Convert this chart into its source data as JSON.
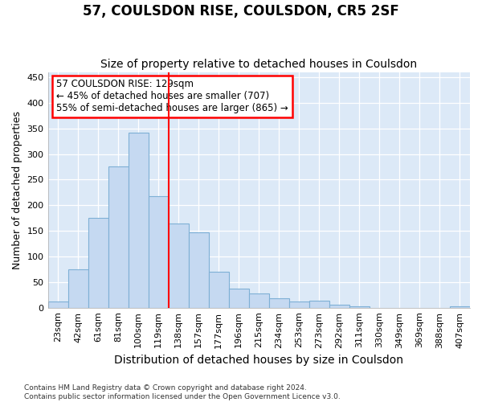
{
  "title": "57, COULSDON RISE, COULSDON, CR5 2SF",
  "subtitle": "Size of property relative to detached houses in Coulsdon",
  "xlabel": "Distribution of detached houses by size in Coulsdon",
  "ylabel": "Number of detached properties",
  "categories": [
    "23sqm",
    "42sqm",
    "61sqm",
    "81sqm",
    "100sqm",
    "119sqm",
    "138sqm",
    "157sqm",
    "177sqm",
    "196sqm",
    "215sqm",
    "234sqm",
    "253sqm",
    "273sqm",
    "292sqm",
    "311sqm",
    "330sqm",
    "349sqm",
    "369sqm",
    "388sqm",
    "407sqm"
  ],
  "values": [
    12,
    75,
    175,
    275,
    342,
    218,
    165,
    147,
    70,
    37,
    28,
    19,
    12,
    14,
    6,
    2,
    0,
    0,
    0,
    0,
    2
  ],
  "bar_color": "#c5d9f1",
  "bar_edge_color": "#7eb0d5",
  "vline_x": 6.0,
  "vline_color": "red",
  "annotation_text": "57 COULSDON RISE: 129sqm\n← 45% of detached houses are smaller (707)\n55% of semi-detached houses are larger (865) →",
  "annotation_box_color": "white",
  "annotation_box_edge_color": "red",
  "ylim": [
    0,
    460
  ],
  "yticks": [
    0,
    50,
    100,
    150,
    200,
    250,
    300,
    350,
    400,
    450
  ],
  "footer": "Contains HM Land Registry data © Crown copyright and database right 2024.\nContains public sector information licensed under the Open Government Licence v3.0.",
  "fig_bg_color": "white",
  "plot_bg_color": "#dce9f7",
  "title_fontsize": 12,
  "subtitle_fontsize": 10,
  "tick_fontsize": 8,
  "ylabel_fontsize": 9,
  "xlabel_fontsize": 10,
  "footer_fontsize": 6.5
}
